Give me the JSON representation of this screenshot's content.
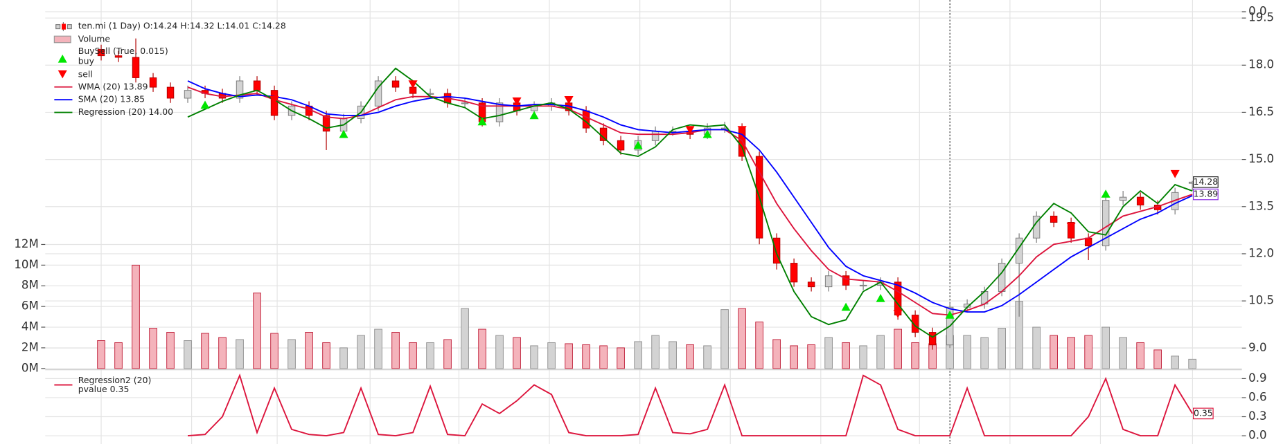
{
  "chart_data": [
    {
      "type": "candlestick",
      "name": "ten.mi (1 Day) O:14.24 H:14.32 L:14.01 C:14.28",
      "open": [
        18.5,
        18.3,
        18.25,
        17.6,
        17.3,
        16.95,
        17.2,
        17.1,
        16.95,
        17.5,
        17.2,
        16.4,
        16.7,
        16.4,
        15.9,
        16.3,
        16.7,
        17.5,
        17.3,
        17.1,
        17.1,
        16.8,
        16.8,
        16.2,
        16.8,
        16.55,
        16.7,
        16.8,
        16.55,
        16.0,
        15.6,
        15.3,
        15.6,
        15.9,
        15.9,
        15.8,
        16.0,
        16.0,
        15.1,
        12.5,
        11.7,
        11.1,
        10.95,
        11.3,
        11.0,
        11.0,
        11.1,
        10.05,
        9.5,
        9.1,
        10.3,
        10.4,
        10.8,
        11.7,
        12.5,
        13.2,
        13.0,
        12.5,
        12.25,
        13.7,
        13.8,
        13.55,
        13.4,
        14.24
      ],
      "high": [
        18.65,
        18.45,
        18.85,
        17.75,
        17.45,
        17.35,
        17.35,
        17.25,
        17.65,
        17.65,
        17.35,
        16.85,
        16.85,
        16.55,
        16.45,
        16.85,
        17.65,
        17.65,
        17.45,
        17.25,
        17.25,
        16.95,
        16.95,
        16.95,
        16.95,
        16.85,
        16.95,
        16.95,
        16.7,
        16.15,
        15.75,
        15.75,
        16.05,
        16.05,
        16.05,
        16.15,
        16.2,
        16.15,
        15.25,
        12.65,
        11.85,
        11.25,
        11.45,
        11.45,
        11.15,
        11.25,
        11.25,
        10.2,
        9.65,
        10.45,
        10.55,
        10.95,
        11.85,
        12.65,
        13.35,
        13.35,
        13.15,
        12.65,
        13.85,
        14.0,
        13.95,
        13.7,
        14.1,
        14.32
      ],
      "low": [
        18.15,
        18.1,
        17.45,
        17.15,
        16.8,
        16.8,
        16.95,
        16.8,
        16.8,
        17.05,
        16.25,
        16.25,
        16.25,
        15.3,
        15.75,
        16.15,
        16.55,
        17.15,
        16.95,
        16.95,
        16.65,
        16.65,
        16.05,
        16.05,
        16.4,
        16.4,
        16.55,
        16.4,
        15.85,
        15.45,
        15.15,
        15.15,
        15.45,
        15.75,
        15.65,
        15.65,
        15.85,
        14.95,
        12.3,
        11.5,
        10.95,
        10.8,
        10.8,
        10.85,
        10.85,
        10.85,
        9.9,
        9.35,
        8.95,
        9.0,
        10.15,
        10.25,
        10.65,
        10.0,
        12.35,
        12.85,
        12.35,
        11.8,
        12.1,
        13.55,
        13.4,
        13.25,
        13.25,
        14.01
      ],
      "close": [
        18.3,
        18.25,
        17.6,
        17.3,
        16.95,
        17.2,
        17.1,
        16.95,
        17.5,
        17.2,
        16.4,
        16.7,
        16.4,
        15.9,
        16.3,
        16.7,
        17.5,
        17.3,
        17.1,
        17.1,
        16.8,
        16.8,
        16.2,
        16.8,
        16.55,
        16.7,
        16.8,
        16.55,
        16.0,
        15.6,
        15.3,
        15.6,
        15.9,
        15.9,
        15.8,
        16.0,
        16.0,
        15.1,
        12.5,
        11.7,
        11.1,
        10.95,
        11.3,
        11.0,
        11.0,
        11.1,
        10.05,
        9.5,
        9.1,
        10.3,
        10.4,
        10.8,
        11.7,
        12.5,
        13.2,
        13.0,
        12.5,
        12.25,
        13.7,
        13.8,
        13.55,
        13.4,
        13.95,
        14.28
      ],
      "up_color": "#d3d3d3",
      "down_color": "#ff0000",
      "ylim": [
        8.35,
        19.63
      ],
      "yticks": [
        {
          "value": 9,
          "label": "9.0"
        },
        10.5,
        {
          "value": 12,
          "label": "12.0"
        },
        13.5,
        {
          "value": 15,
          "label": "15.0"
        },
        16.5,
        {
          "value": 18,
          "label": "18.0"
        },
        19.5
      ],
      "grid": true,
      "volume": {
        "name": "Volume",
        "axis": "y2",
        "up_color": "#d3d3d3",
        "down_color": "#f4b3bb",
        "values": [
          2.7,
          2.5,
          10.0,
          3.9,
          3.5,
          2.7,
          3.4,
          3.0,
          2.8,
          7.3,
          3.4,
          2.8,
          3.5,
          2.5,
          2.0,
          3.2,
          3.8,
          3.5,
          2.5,
          2.5,
          2.8,
          5.8,
          3.8,
          3.2,
          3.0,
          2.2,
          2.5,
          2.4,
          2.3,
          2.2,
          2.0,
          2.6,
          3.2,
          2.6,
          2.3,
          2.2,
          5.7,
          5.8,
          4.5,
          2.8,
          2.2,
          2.3,
          3.0,
          2.5,
          2.2,
          3.2,
          3.8,
          2.5,
          2.4,
          3.2,
          3.2,
          3.0,
          3.9,
          6.5,
          4.0,
          3.2,
          3.0,
          3.2,
          4.0,
          3.0,
          2.5,
          1.8,
          1.2,
          0.9
        ]
      },
      "y2lim": [
        0,
        34.3
      ],
      "y2ticks": [
        {
          "value": 0,
          "label": "0M"
        },
        {
          "value": 2,
          "label": "2M"
        },
        {
          "value": 4,
          "label": "4M"
        },
        {
          "value": 6,
          "label": "6M"
        },
        {
          "value": 8,
          "label": "8M"
        },
        {
          "value": 10,
          "label": "10M"
        },
        {
          "value": 12,
          "label": "12M"
        }
      ],
      "buysell": {
        "name": "BuySell (True, 0.015)",
        "buy": {
          "name": "buy",
          "color": "#00e600",
          "values": [
            null,
            null,
            null,
            null,
            null,
            null,
            16.73,
            null,
            null,
            null,
            null,
            null,
            null,
            null,
            15.8,
            null,
            null,
            null,
            null,
            null,
            null,
            null,
            16.2,
            null,
            null,
            16.4,
            null,
            null,
            null,
            null,
            null,
            15.45,
            null,
            null,
            null,
            15.8,
            null,
            null,
            null,
            null,
            null,
            null,
            null,
            10.3,
            null,
            10.58,
            null,
            null,
            null,
            10.05,
            null,
            null,
            null,
            null,
            null,
            null,
            null,
            null,
            13.9,
            null,
            null,
            null,
            null,
            null
          ]
        },
        "sell": {
          "name": "sell",
          "color": "#ff0000",
          "values": [
            null,
            null,
            null,
            null,
            null,
            null,
            null,
            null,
            null,
            null,
            16.9,
            null,
            null,
            null,
            null,
            null,
            null,
            null,
            17.4,
            null,
            null,
            null,
            null,
            null,
            16.86,
            null,
            null,
            16.9,
            null,
            null,
            null,
            null,
            null,
            null,
            15.95,
            null,
            null,
            15.95,
            null,
            null,
            null,
            null,
            null,
            null,
            null,
            null,
            10.1,
            null,
            null,
            null,
            null,
            null,
            null,
            null,
            null,
            null,
            12.87,
            null,
            null,
            null,
            null,
            null,
            14.55,
            null
          ]
        }
      },
      "series": [
        {
          "name": "WMA (20) 13.89",
          "color": "#dc143c",
          "values": [
            null,
            null,
            null,
            null,
            null,
            17.3,
            17.1,
            17.0,
            17.05,
            17.1,
            16.9,
            16.75,
            16.6,
            16.35,
            16.3,
            16.4,
            16.65,
            16.9,
            17.0,
            17.0,
            16.95,
            16.85,
            16.7,
            16.7,
            16.7,
            16.7,
            16.7,
            16.6,
            16.35,
            16.1,
            15.85,
            15.8,
            15.8,
            15.8,
            15.85,
            15.95,
            15.95,
            15.6,
            14.6,
            13.6,
            12.8,
            12.1,
            11.5,
            11.2,
            11.15,
            11.1,
            10.8,
            10.45,
            10.1,
            10.05,
            10.2,
            10.4,
            10.8,
            11.3,
            11.9,
            12.3,
            12.4,
            12.5,
            12.85,
            13.2,
            13.35,
            13.5,
            13.7,
            13.89
          ]
        },
        {
          "name": "SMA (20) 13.85",
          "color": "#0000ff",
          "values": [
            null,
            null,
            null,
            null,
            null,
            17.5,
            17.25,
            17.1,
            17.0,
            17.05,
            17.0,
            16.9,
            16.7,
            16.45,
            16.4,
            16.4,
            16.5,
            16.7,
            16.85,
            16.95,
            17.0,
            16.95,
            16.85,
            16.75,
            16.7,
            16.75,
            16.75,
            16.7,
            16.55,
            16.35,
            16.1,
            15.95,
            15.9,
            15.85,
            15.9,
            15.95,
            15.95,
            15.8,
            15.3,
            14.6,
            13.8,
            13.0,
            12.2,
            11.6,
            11.3,
            11.15,
            11.0,
            10.75,
            10.45,
            10.25,
            10.15,
            10.15,
            10.35,
            10.7,
            11.1,
            11.5,
            11.9,
            12.2,
            12.5,
            12.8,
            13.1,
            13.3,
            13.6,
            13.85
          ]
        },
        {
          "name": "Regression (20) 14.00",
          "color": "#008000",
          "values": [
            null,
            null,
            null,
            null,
            null,
            16.35,
            16.6,
            16.85,
            17.05,
            17.2,
            16.9,
            16.55,
            16.3,
            16.0,
            16.1,
            16.5,
            17.3,
            17.9,
            17.5,
            17.0,
            16.8,
            16.65,
            16.3,
            16.4,
            16.55,
            16.7,
            16.8,
            16.6,
            16.2,
            15.7,
            15.2,
            15.1,
            15.4,
            15.95,
            16.1,
            16.05,
            16.1,
            15.4,
            13.8,
            12.0,
            10.8,
            10.0,
            9.75,
            9.9,
            10.8,
            11.1,
            10.4,
            9.7,
            9.35,
            9.7,
            10.3,
            10.8,
            11.4,
            12.2,
            13.0,
            13.6,
            13.3,
            12.7,
            12.6,
            13.5,
            14.0,
            13.6,
            14.2,
            14.0
          ]
        }
      ]
    },
    {
      "type": "line",
      "name": "Regression2 (20)",
      "series": [
        {
          "name": "pvalue 0.35",
          "color": "#dc143c",
          "values": [
            null,
            null,
            null,
            null,
            null,
            0.0,
            0.02,
            0.3,
            0.95,
            0.05,
            0.75,
            0.1,
            0.02,
            0.0,
            0.05,
            0.75,
            0.02,
            0.0,
            0.05,
            0.78,
            0.02,
            0.0,
            0.5,
            0.35,
            0.55,
            0.8,
            0.65,
            0.05,
            0.0,
            0.0,
            0.0,
            0.02,
            0.75,
            0.05,
            0.03,
            0.1,
            0.8,
            0.0,
            0.0,
            0.0,
            0.0,
            0.0,
            0.0,
            0.0,
            0.95,
            0.8,
            0.1,
            0.0,
            0.0,
            0.0,
            0.75,
            0.0,
            0.0,
            0.0,
            0.0,
            0.0,
            0.0,
            0.3,
            0.9,
            0.1,
            0.0,
            0.0,
            0.8,
            0.35
          ]
        }
      ],
      "ylim": [
        -0.13,
        1.02
      ],
      "yticks": [
        {
          "value": 0,
          "label": "0.0"
        },
        0.3,
        0.6,
        0.9
      ]
    },
    {
      "type": "line",
      "ylim": [
        -0.05,
        1
      ],
      "yticks": [
        {
          "value": 0,
          "label": "0.0"
        }
      ]
    }
  ]
}
